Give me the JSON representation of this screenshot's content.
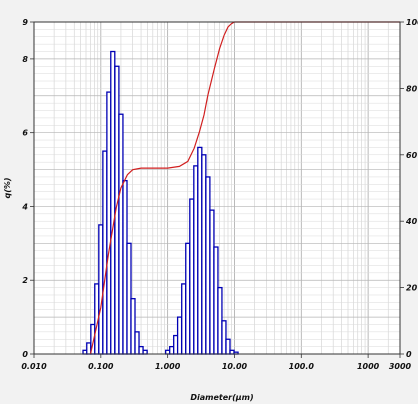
{
  "chart_data": {
    "type": "bar",
    "xlabel": "Diameter(μm)",
    "ylabel": "q(%)",
    "x_scale": "log",
    "xlim": [
      0.01,
      3000
    ],
    "ylim": [
      0,
      9
    ],
    "y2lim": [
      0,
      100
    ],
    "grid": true,
    "x_tick_labels": [
      "0.010",
      "0.100",
      "1.000",
      "10.00",
      "100.0",
      "1000",
      "3000"
    ],
    "y_tick_labels": [
      "0",
      "2",
      "4",
      "6",
      "8",
      "9"
    ],
    "y2_tick_labels": [
      "0",
      "20",
      "40",
      "60",
      "80",
      "100"
    ],
    "bar_color": "#0000b4",
    "line_color": "#d11f1f",
    "series": [
      {
        "kind": "bar",
        "x": [
          0.058,
          0.066,
          0.076,
          0.087,
          0.1,
          0.115,
          0.132,
          0.151,
          0.174,
          0.2,
          0.23,
          0.264,
          0.303,
          0.348,
          0.4,
          0.46,
          0.528,
          1.0,
          1.15,
          1.32,
          1.51,
          1.74,
          2.0,
          2.3,
          2.64,
          3.03,
          3.48,
          4.0,
          4.6,
          5.28,
          6.06,
          6.96,
          8.0,
          9.19,
          10.56,
          12.1
        ],
        "values": [
          0.1,
          0.3,
          0.8,
          1.9,
          3.5,
          5.5,
          7.1,
          8.2,
          7.8,
          6.5,
          4.7,
          3.0,
          1.5,
          0.6,
          0.2,
          0.1,
          0.0,
          0.1,
          0.2,
          0.5,
          1.0,
          1.9,
          3.0,
          4.2,
          5.1,
          5.6,
          5.4,
          4.8,
          3.9,
          2.9,
          1.8,
          0.9,
          0.4,
          0.1,
          0.05,
          0.0
        ]
      },
      {
        "kind": "line",
        "axis": "right",
        "x": [
          0.07,
          0.1,
          0.13,
          0.17,
          0.2,
          0.25,
          0.3,
          0.4,
          0.6,
          1.0,
          1.5,
          2.0,
          2.5,
          3.0,
          3.5,
          4.0,
          5.0,
          6.0,
          7.0,
          8.0,
          9.0,
          10.0,
          12.0,
          3000
        ],
        "values": [
          0,
          14,
          30,
          44,
          50,
          54,
          55.5,
          56,
          56,
          56,
          56.5,
          58,
          62,
          67,
          72,
          78,
          86,
          92,
          96,
          98.5,
          99.5,
          100,
          100,
          100
        ]
      }
    ]
  }
}
